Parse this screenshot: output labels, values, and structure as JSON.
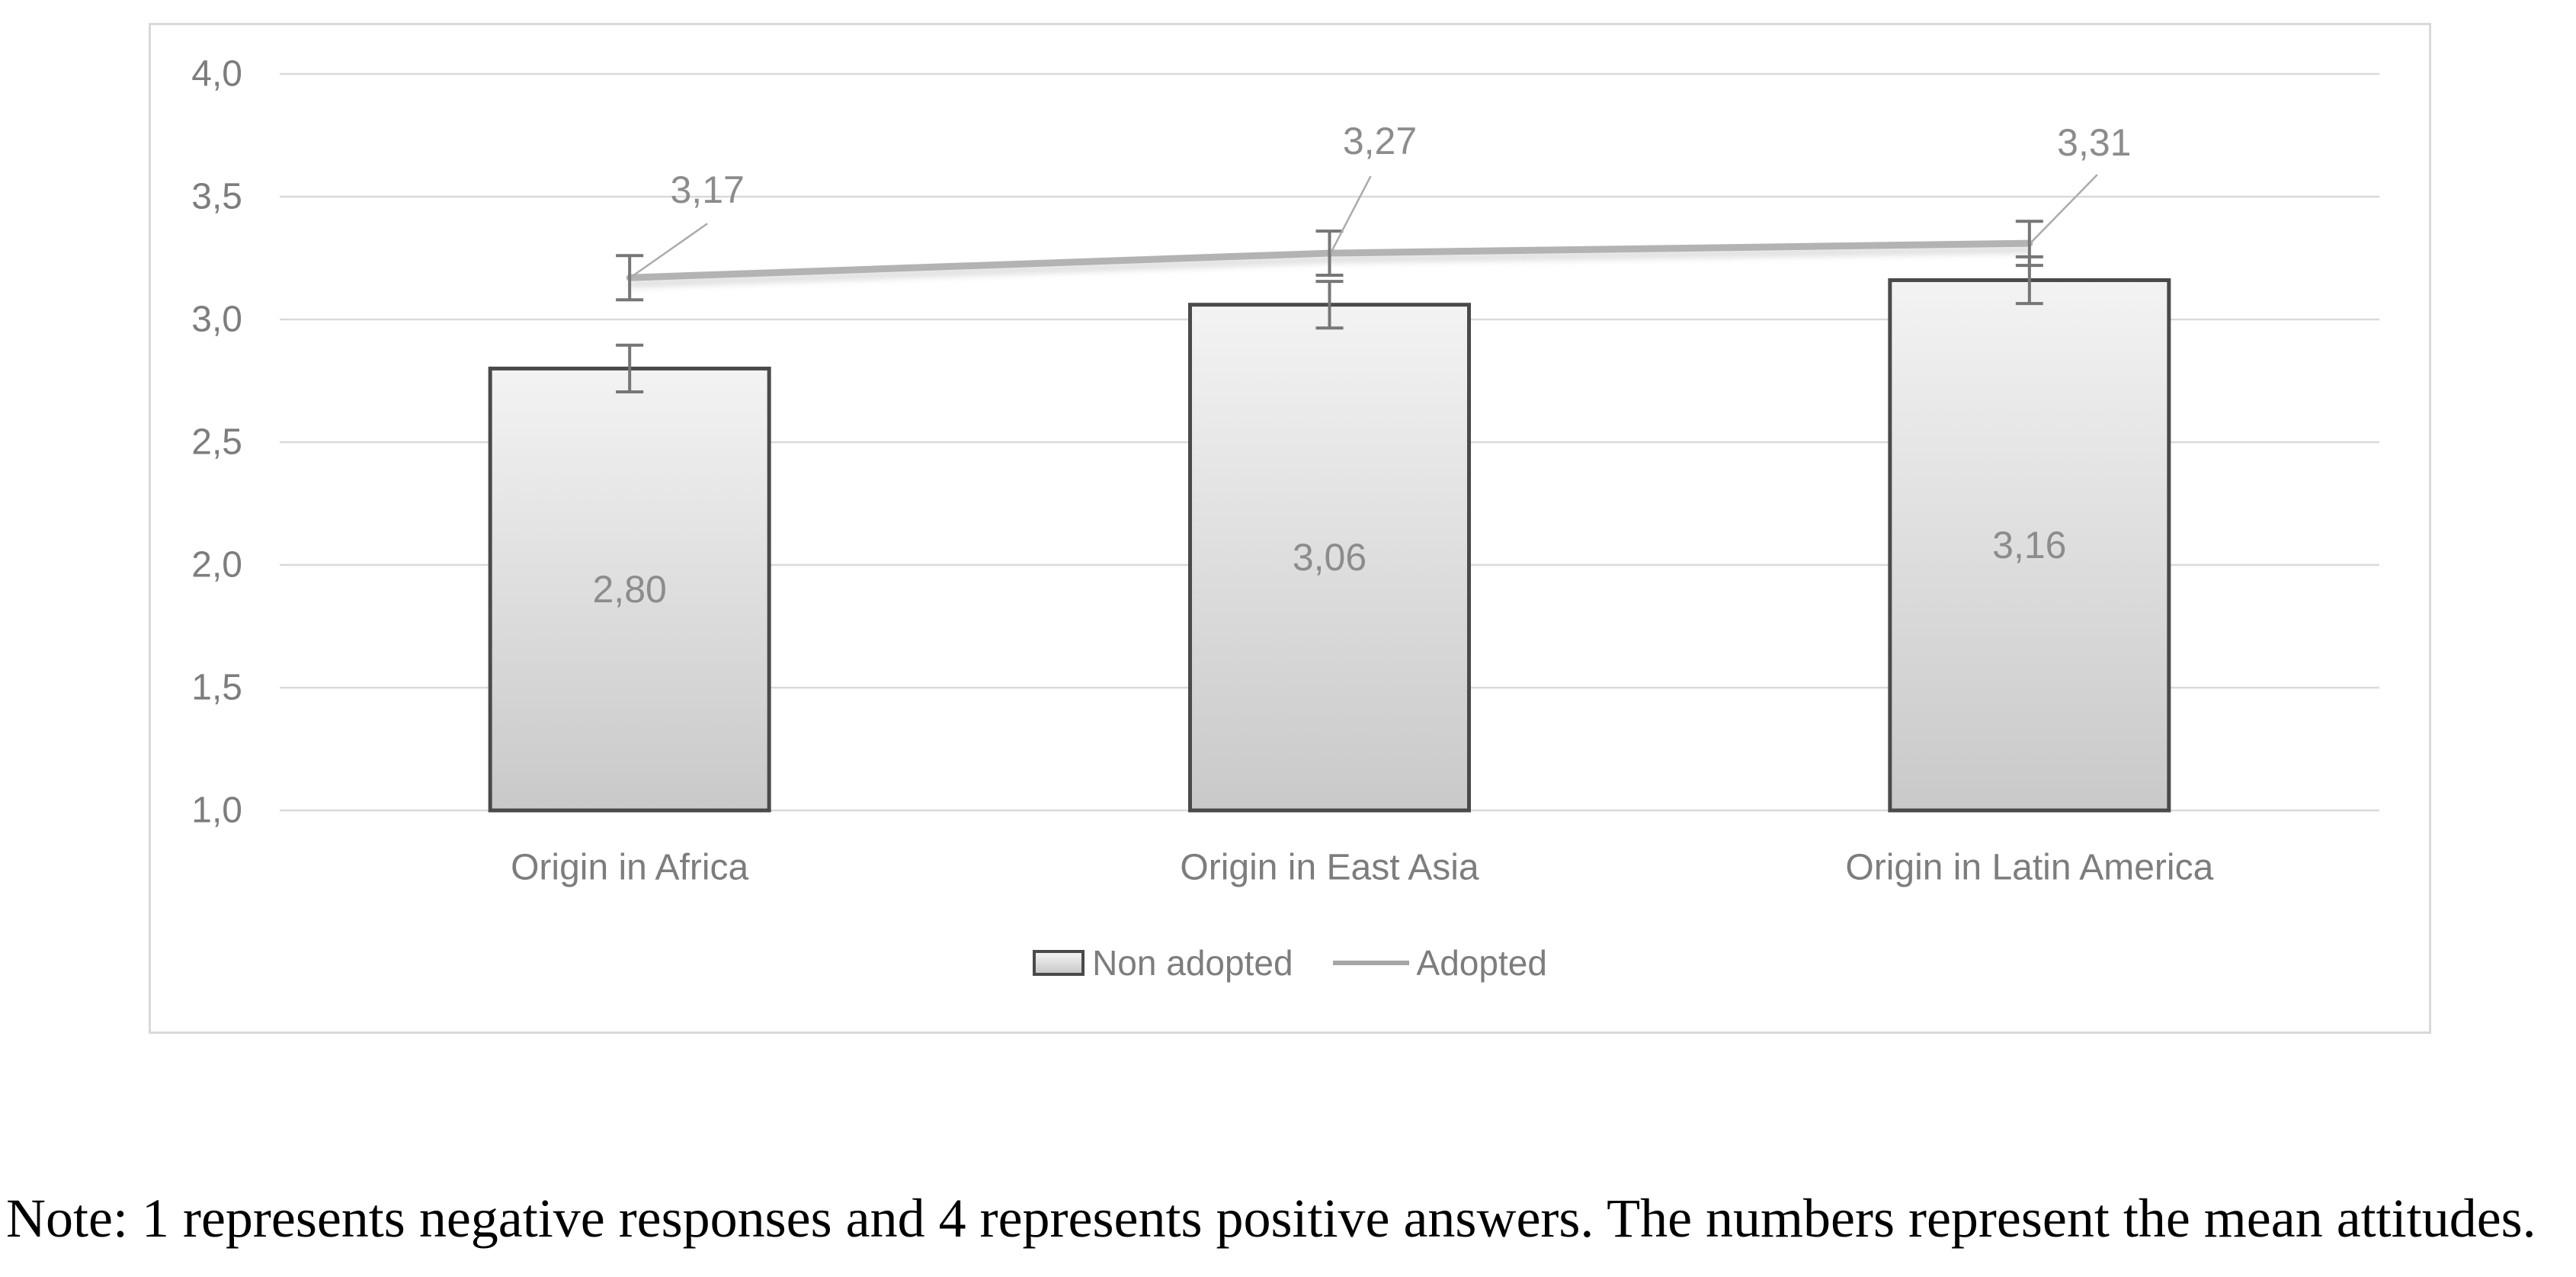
{
  "chart_data": {
    "type": "bar",
    "subtype": "bar-with-line-overlay",
    "title": "",
    "xlabel": "",
    "ylabel": "",
    "categories": [
      "Origin in Africa",
      "Origin in East Asia",
      "Origin in Latin America"
    ],
    "series": [
      {
        "name": "Non adopted",
        "chart_type": "bar",
        "values": [
          2.8,
          3.06,
          3.16
        ],
        "value_labels": [
          "2,80",
          "3,06",
          "3,16"
        ],
        "error_bar": 0.095
      },
      {
        "name": "Adopted",
        "chart_type": "line",
        "values": [
          3.17,
          3.27,
          3.31
        ],
        "value_labels": [
          "3,17",
          "3,27",
          "3,31"
        ],
        "error_bar": 0.09
      }
    ],
    "ylim": [
      1.0,
      4.0
    ],
    "ytick_step": 0.5,
    "ytick_labels": [
      "4,0",
      "3,5",
      "3,0",
      "2,5",
      "2,0",
      "1,5",
      "1,0"
    ],
    "grid": true,
    "legend_position": "bottom-center",
    "decimal_separator": ","
  },
  "note": {
    "text": "Note: 1 represents negative responses and 4 represents positive answers. The numbers represent the mean attitudes."
  },
  "colors": {
    "bar_fill_top": "#f3f3f3",
    "bar_fill_bottom": "#c9c9c9",
    "bar_border": "#4a4a4a",
    "adopted_line": "#b3b3b3",
    "adopted_line_shadow": "#cccccc",
    "gridline": "#d9d9d9",
    "axis_text": "#7d7d7d",
    "data_label_text": "#8c8c8c",
    "error_bar": "#767676",
    "leader_line": "#ababab",
    "frame_border": "#d9d9d9",
    "note_text": "#000000"
  }
}
